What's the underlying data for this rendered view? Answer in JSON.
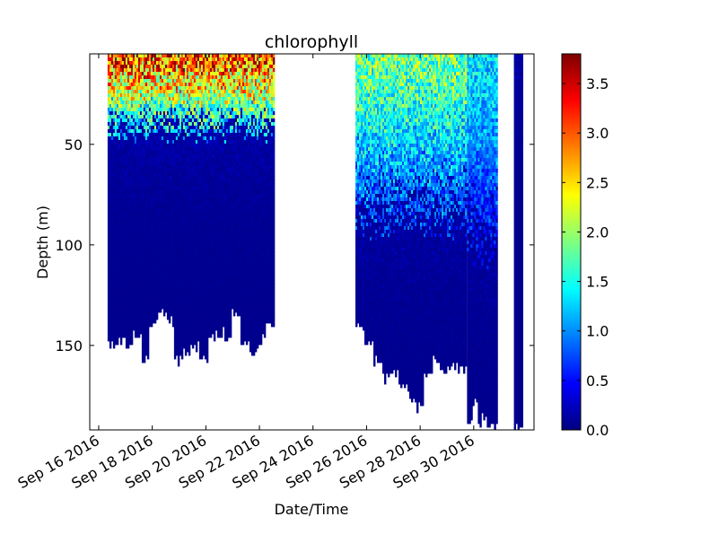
{
  "chart_data": {
    "type": "heatmap",
    "title": "chlorophyll",
    "xlabel": "Date/Time",
    "ylabel": "Depth (m)",
    "x_axis": {
      "kind": "date",
      "range": [
        "2016-09-15T16:00",
        "2016-10-02T06:00"
      ],
      "ticks": [
        {
          "date": "2016-09-16",
          "label": "Sep 16 2016"
        },
        {
          "date": "2016-09-18",
          "label": "Sep 18 2016"
        },
        {
          "date": "2016-09-20",
          "label": "Sep 20 2016"
        },
        {
          "date": "2016-09-22",
          "label": "Sep 22 2016"
        },
        {
          "date": "2016-09-24",
          "label": "Sep 24 2016"
        },
        {
          "date": "2016-09-26",
          "label": "Sep 26 2016"
        },
        {
          "date": "2016-09-28",
          "label": "Sep 28 2016"
        },
        {
          "date": "2016-09-30",
          "label": "Sep 30 2016"
        }
      ]
    },
    "y_axis": {
      "inverted": true,
      "range": [
        5,
        192
      ],
      "ticks": [
        {
          "value": 50,
          "label": "50"
        },
        {
          "value": 100,
          "label": "100"
        },
        {
          "value": 150,
          "label": "150"
        }
      ]
    },
    "colorbar": {
      "colormap": "jet",
      "range": [
        0.0,
        3.8
      ],
      "ticks": [
        {
          "value": 0.0,
          "label": "0.0"
        },
        {
          "value": 0.5,
          "label": "0.5"
        },
        {
          "value": 1.0,
          "label": "1.0"
        },
        {
          "value": 1.5,
          "label": "1.5"
        },
        {
          "value": 2.0,
          "label": "2.0"
        },
        {
          "value": 2.5,
          "label": "2.5"
        },
        {
          "value": 3.0,
          "label": "3.0"
        },
        {
          "value": 3.5,
          "label": "3.5"
        }
      ]
    },
    "segments": [
      {
        "start": "2016-09-16T08:00",
        "end": "2016-09-22T14:00",
        "min_depth": 5,
        "max_depth": [
          151,
          150,
          152,
          146,
          158,
          140,
          135,
          141,
          160,
          155,
          152,
          158,
          150,
          146,
          148,
          135,
          150,
          157,
          150,
          142
        ],
        "surface_max": 3.7,
        "mixed_layer_depth": 40
      },
      {
        "start": "2016-09-25T14:00",
        "end": "2016-09-29T18:00",
        "min_depth": 5,
        "max_depth": [
          143,
          150,
          160,
          168,
          165,
          172,
          178,
          182,
          165,
          160,
          165,
          162,
          164
        ],
        "surface_max": 2.2,
        "mixed_layer_depth": 80
      },
      {
        "start": "2016-09-29T18:00",
        "end": "2016-09-30T22:00",
        "min_depth": 5,
        "max_depth": [
          192,
          180,
          192,
          188,
          192,
          192
        ],
        "surface_max": 1.6,
        "mixed_layer_depth": 90
      },
      {
        "start": "2016-10-01T12:00",
        "end": "2016-10-01T20:00",
        "min_depth": 5,
        "max_depth": [
          192
        ],
        "surface_max": 0.1,
        "mixed_layer_depth": 0
      }
    ]
  }
}
